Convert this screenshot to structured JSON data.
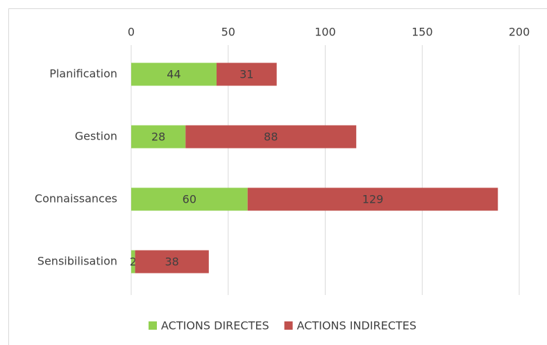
{
  "chart_data": {
    "type": "bar",
    "orientation": "horizontal",
    "stacked": true,
    "axis_position": "top",
    "categories": [
      "Planification",
      "Gestion",
      "Connaissances",
      "Sensibilisation"
    ],
    "series": [
      {
        "name": "ACTIONS DIRECTES",
        "color": "#92d050",
        "values": [
          44,
          28,
          60,
          2
        ]
      },
      {
        "name": "ACTIONS INDIRECTES",
        "color": "#c0504d",
        "values": [
          31,
          88,
          129,
          38
        ]
      }
    ],
    "xlim": [
      0,
      200
    ],
    "xticks": [
      0,
      50,
      100,
      150,
      200
    ],
    "grid": true,
    "legend": "bottom"
  }
}
